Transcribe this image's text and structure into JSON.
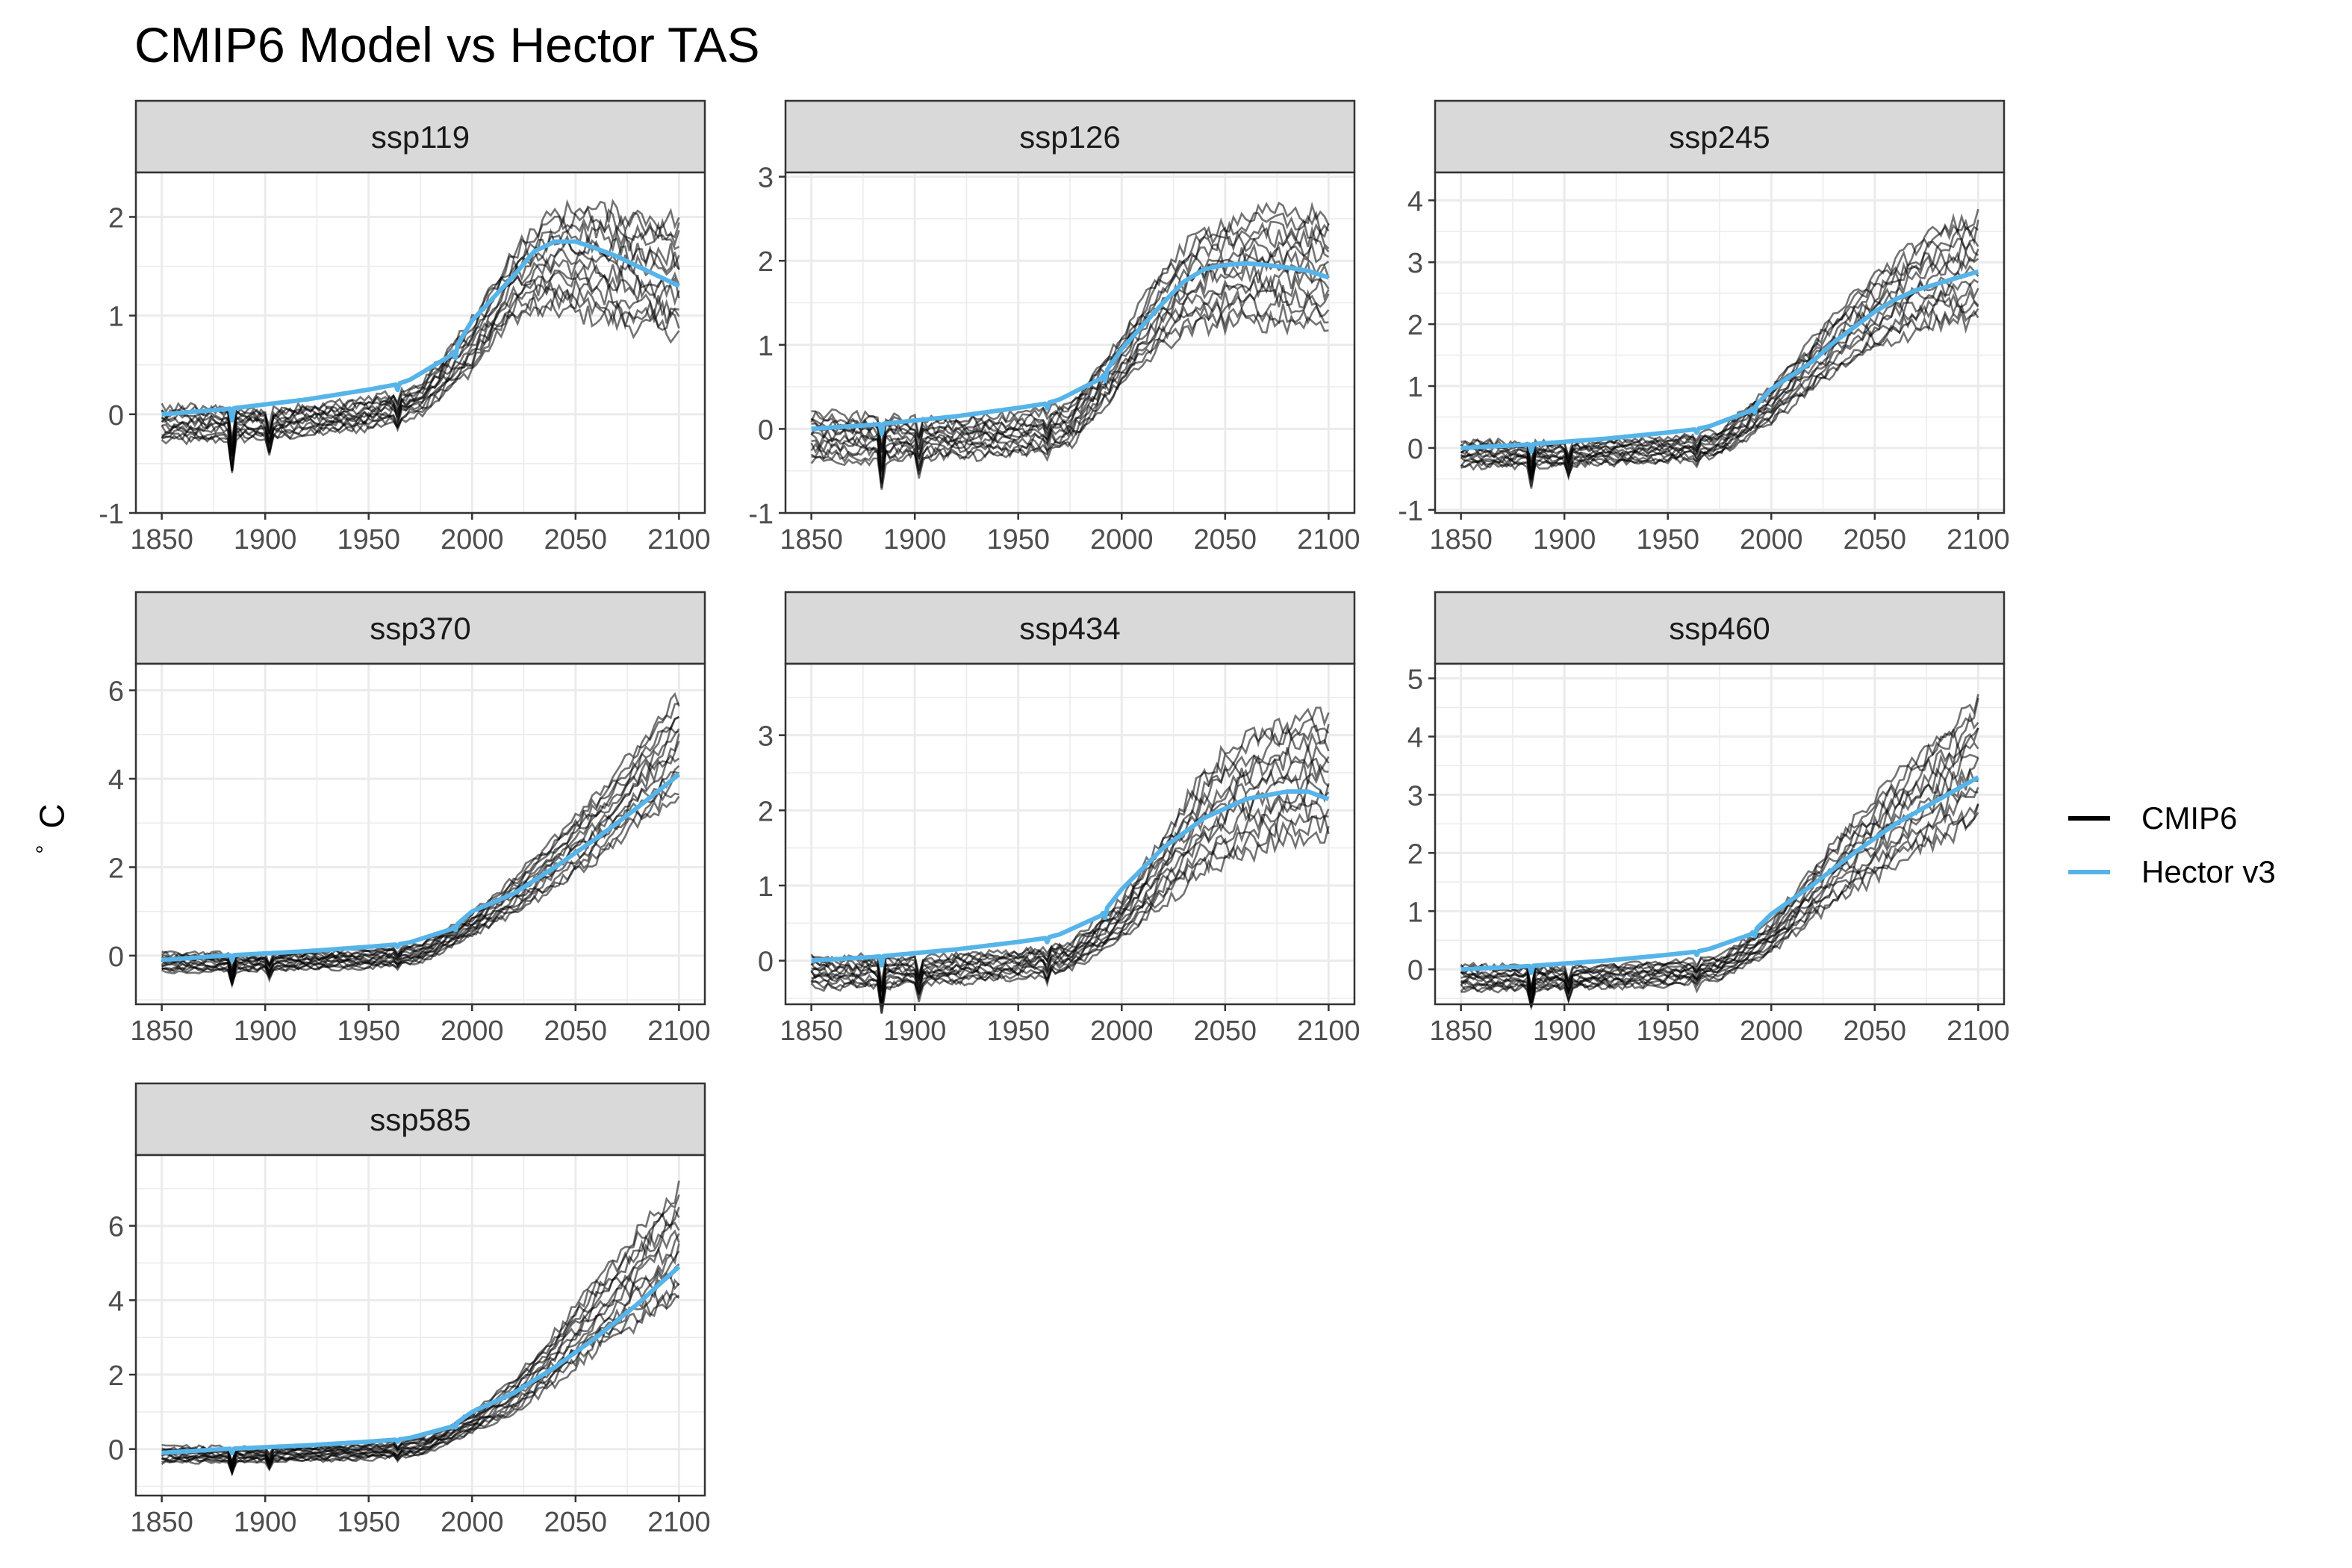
{
  "title": "CMIP6 Model vs Hector TAS",
  "ylabel_sym": "°",
  "ylabel_unit": "C",
  "colors": {
    "cmip6": "#000000",
    "hector": "#56B4E9",
    "strip": "#D9D9D9",
    "grid": "#EBEBEB"
  },
  "legend": [
    {
      "label": "CMIP6",
      "color": "#000000"
    },
    {
      "label": "Hector v3",
      "color": "#56B4E9"
    }
  ],
  "chart_data": [
    {
      "type": "line",
      "panel": "ssp119",
      "x_ticks": [
        "1850",
        "1900",
        "1950",
        "2000",
        "2050",
        "2100"
      ],
      "y_ticks": [
        "-1",
        "0",
        "1",
        "2"
      ],
      "ylim": [
        -1,
        2.45
      ],
      "series": [
        {
          "name": "Hector v3",
          "x": [
            1850,
            1880,
            1900,
            1920,
            1950,
            1963,
            1970,
            1990,
            2000,
            2020,
            2030,
            2040,
            2050,
            2060,
            2070,
            2080,
            2090,
            2100
          ],
          "y": [
            0,
            0.05,
            0.1,
            0.15,
            0.25,
            0.3,
            0.35,
            0.6,
            0.95,
            1.4,
            1.65,
            1.75,
            1.75,
            1.68,
            1.6,
            1.5,
            1.4,
            1.3
          ]
        },
        {
          "name": "CMIP6",
          "x": [
            1850,
            1900,
            1950,
            1975,
            2000,
            2020,
            2040,
            2060,
            2080,
            2100
          ],
          "y_low": [
            -0.35,
            -0.3,
            -0.2,
            -0.05,
            0.35,
            0.85,
            0.85,
            0.75,
            0.65,
            0.6
          ],
          "y_high": [
            0.15,
            0.1,
            0.2,
            0.35,
            1.05,
            1.8,
            2.25,
            2.3,
            2.25,
            2.2
          ]
        }
      ]
    },
    {
      "type": "line",
      "panel": "ssp126",
      "x_ticks": [
        "1850",
        "1900",
        "1950",
        "2000",
        "2050",
        "2100"
      ],
      "y_ticks": [
        "-1",
        "0",
        "1",
        "2",
        "3"
      ],
      "ylim": [
        -1,
        3.05
      ],
      "series": [
        {
          "name": "Hector v3",
          "x": [
            1850,
            1880,
            1900,
            1920,
            1950,
            1963,
            1970,
            1990,
            2000,
            2020,
            2030,
            2040,
            2050,
            2060,
            2070,
            2080,
            2090,
            2100
          ],
          "y": [
            0,
            0.05,
            0.1,
            0.15,
            0.25,
            0.3,
            0.35,
            0.6,
            0.95,
            1.5,
            1.75,
            1.9,
            1.95,
            1.97,
            1.95,
            1.92,
            1.88,
            1.8
          ]
        },
        {
          "name": "CMIP6",
          "x": [
            1850,
            1900,
            1950,
            1975,
            2000,
            2020,
            2040,
            2060,
            2080,
            2100
          ],
          "y_low": [
            -0.5,
            -0.45,
            -0.4,
            -0.3,
            0.4,
            0.8,
            1.0,
            1.0,
            1.0,
            1.0
          ],
          "y_high": [
            0.3,
            0.2,
            0.25,
            0.4,
            1.2,
            2.1,
            2.6,
            2.8,
            2.85,
            2.8
          ]
        }
      ]
    },
    {
      "type": "line",
      "panel": "ssp245",
      "x_ticks": [
        "1850",
        "1900",
        "1950",
        "2000",
        "2050",
        "2100"
      ],
      "y_ticks": [
        "-1",
        "0",
        "1",
        "2",
        "3",
        "4"
      ],
      "ylim": [
        -1.05,
        4.45
      ],
      "series": [
        {
          "name": "Hector v3",
          "x": [
            1850,
            1880,
            1900,
            1920,
            1950,
            1963,
            1970,
            1990,
            2000,
            2020,
            2030,
            2040,
            2050,
            2060,
            2070,
            2080,
            2090,
            2100
          ],
          "y": [
            0,
            0.05,
            0.1,
            0.15,
            0.25,
            0.3,
            0.35,
            0.6,
            0.95,
            1.4,
            1.7,
            1.95,
            2.2,
            2.4,
            2.55,
            2.65,
            2.75,
            2.85
          ]
        },
        {
          "name": "CMIP6",
          "x": [
            1850,
            1900,
            1950,
            1975,
            2000,
            2020,
            2040,
            2060,
            2080,
            2100
          ],
          "y_low": [
            -0.4,
            -0.35,
            -0.3,
            -0.2,
            0.3,
            0.8,
            1.2,
            1.5,
            1.7,
            1.7
          ],
          "y_high": [
            0.2,
            0.15,
            0.25,
            0.35,
            1.1,
            1.9,
            2.7,
            3.3,
            3.8,
            4.15
          ]
        }
      ]
    },
    {
      "type": "line",
      "panel": "ssp370",
      "x_ticks": [
        "1850",
        "1900",
        "1950",
        "2000",
        "2050",
        "2100"
      ],
      "y_ticks": [
        "0",
        "2",
        "4",
        "6"
      ],
      "ylim": [
        -1.1,
        6.6
      ],
      "series": [
        {
          "name": "Hector v3",
          "x": [
            1850,
            1880,
            1900,
            1920,
            1950,
            1963,
            1970,
            1990,
            2000,
            2020,
            2040,
            2060,
            2080,
            2100
          ],
          "y": [
            -0.1,
            0,
            0.05,
            0.1,
            0.2,
            0.25,
            0.3,
            0.6,
            1.0,
            1.4,
            2.0,
            2.65,
            3.35,
            4.1
          ]
        },
        {
          "name": "CMIP6",
          "x": [
            1850,
            1900,
            1950,
            1975,
            2000,
            2020,
            2040,
            2060,
            2080,
            2100
          ],
          "y_low": [
            -0.45,
            -0.4,
            -0.35,
            -0.25,
            0.35,
            0.8,
            1.3,
            1.9,
            2.6,
            3.2
          ],
          "y_high": [
            0.15,
            0.1,
            0.2,
            0.35,
            1.05,
            1.9,
            2.9,
            3.9,
            5.1,
            6.3
          ]
        }
      ]
    },
    {
      "type": "line",
      "panel": "ssp434",
      "x_ticks": [
        "1850",
        "1900",
        "1950",
        "2000",
        "2050",
        "2100"
      ],
      "y_ticks": [
        "0",
        "1",
        "2",
        "3"
      ],
      "ylim": [
        -0.58,
        3.95
      ],
      "series": [
        {
          "name": "Hector v3",
          "x": [
            1850,
            1880,
            1900,
            1920,
            1950,
            1963,
            1970,
            1990,
            2000,
            2020,
            2040,
            2060,
            2080,
            2090,
            2100
          ],
          "y": [
            0,
            0.05,
            0.1,
            0.15,
            0.25,
            0.3,
            0.35,
            0.6,
            0.95,
            1.5,
            1.9,
            2.15,
            2.25,
            2.25,
            2.15
          ]
        },
        {
          "name": "CMIP6",
          "x": [
            1850,
            1900,
            1950,
            1975,
            2000,
            2020,
            2040,
            2060,
            2080,
            2100
          ],
          "y_low": [
            -0.45,
            -0.4,
            -0.3,
            -0.2,
            0.2,
            0.6,
            0.9,
            1.1,
            1.3,
            1.35
          ],
          "y_high": [
            0.15,
            0.1,
            0.2,
            0.3,
            0.9,
            1.8,
            2.8,
            3.3,
            3.5,
            3.6
          ]
        }
      ]
    },
    {
      "type": "line",
      "panel": "ssp460",
      "x_ticks": [
        "1850",
        "1900",
        "1950",
        "2000",
        "2050",
        "2100"
      ],
      "y_ticks": [
        "0",
        "1",
        "2",
        "3",
        "4",
        "5"
      ],
      "ylim": [
        -0.6,
        5.25
      ],
      "series": [
        {
          "name": "Hector v3",
          "x": [
            1850,
            1880,
            1900,
            1920,
            1950,
            1963,
            1970,
            1990,
            2000,
            2020,
            2040,
            2060,
            2080,
            2100
          ],
          "y": [
            0,
            0.05,
            0.1,
            0.15,
            0.25,
            0.3,
            0.35,
            0.6,
            0.95,
            1.45,
            2.0,
            2.5,
            2.9,
            3.3
          ]
        },
        {
          "name": "CMIP6",
          "x": [
            1850,
            1900,
            1950,
            1975,
            2000,
            2020,
            2040,
            2060,
            2080,
            2100
          ],
          "y_low": [
            -0.45,
            -0.4,
            -0.35,
            -0.25,
            0.2,
            0.7,
            1.1,
            1.5,
            1.8,
            2.1
          ],
          "y_high": [
            0.15,
            0.1,
            0.2,
            0.3,
            0.9,
            1.9,
            2.8,
            3.6,
            4.4,
            5.1
          ]
        }
      ]
    },
    {
      "type": "line",
      "panel": "ssp585",
      "x_ticks": [
        "1850",
        "1900",
        "1950",
        "2000",
        "2050",
        "2100"
      ],
      "y_ticks": [
        "0",
        "2",
        "4",
        "6"
      ],
      "ylim": [
        -1.25,
        7.9
      ],
      "series": [
        {
          "name": "Hector v3",
          "x": [
            1850,
            1880,
            1900,
            1920,
            1950,
            1963,
            1970,
            1990,
            2000,
            2020,
            2040,
            2060,
            2080,
            2100
          ],
          "y": [
            -0.1,
            0,
            0.05,
            0.1,
            0.2,
            0.25,
            0.3,
            0.6,
            1.0,
            1.5,
            2.2,
            3.0,
            3.9,
            4.9
          ]
        },
        {
          "name": "CMIP6",
          "x": [
            1850,
            1900,
            1950,
            1975,
            2000,
            2020,
            2040,
            2060,
            2080,
            2100
          ],
          "y_low": [
            -0.45,
            -0.4,
            -0.35,
            -0.25,
            0.35,
            0.8,
            1.5,
            2.3,
            2.9,
            3.3
          ],
          "y_high": [
            0.15,
            0.1,
            0.2,
            0.35,
            1.05,
            2.0,
            3.4,
            4.9,
            6.3,
            7.6
          ]
        }
      ]
    }
  ]
}
